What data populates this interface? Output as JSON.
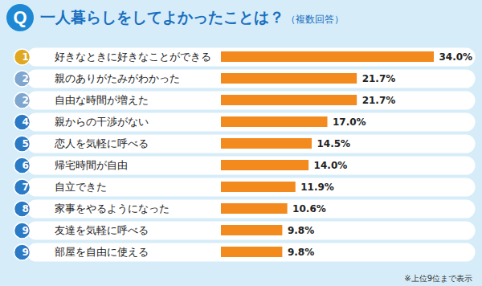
{
  "chart_data": {
    "type": "bar",
    "orientation": "horizontal",
    "question_label": "Q",
    "title": "一人暮らしをしてよかったことは？",
    "subtitle": "（複数回答）",
    "note": "※上位9位まで表示",
    "categories": [
      "好きなときに好きなことができる",
      "親のありがたみがわかった",
      "自由な時間が増えた",
      "親からの干渉がない",
      "恋人を気軽に呼べる",
      "帰宅時間が自由",
      "自立できた",
      "家事をやるようになった",
      "友達を気軽に呼べる",
      "部屋を自由に使える"
    ],
    "values": [
      34.0,
      21.7,
      21.7,
      17.0,
      14.5,
      14.0,
      11.9,
      10.6,
      9.8,
      9.8
    ],
    "value_labels": [
      "34.0%",
      "21.7%",
      "21.7%",
      "17.0%",
      "14.5%",
      "14.0%",
      "11.9%",
      "10.6%",
      "9.8%",
      "9.8%"
    ],
    "ranks": [
      1,
      2,
      2,
      4,
      5,
      6,
      7,
      8,
      9,
      9
    ],
    "color": "#f28a1e",
    "xlim": [
      0,
      34
    ],
    "xticks": [],
    "data_labels": true,
    "tick_labels": "y",
    "grid": false
  }
}
